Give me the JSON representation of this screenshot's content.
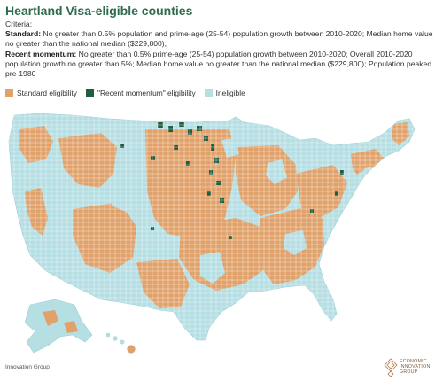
{
  "title": "Heartland Visa-eligible counties",
  "criteria": {
    "heading": "Criteria:",
    "standard_label": "Standard:",
    "standard_text": " No greater than 0.5% population and prime-age (25-54) population growth between 2010-2020; Median home value no greater than the national median ($229,800),",
    "recent_label": "Recent momentum:",
    "recent_text": " No greater than 0.5% prime-age (25-54) population growth between 2010-2020; Overall 2010-2020 population growth no greater than 5%; Median home value no greater than the national median ($229,800); Population peaked pre-1980"
  },
  "legend": [
    {
      "label": "Standard eligibility",
      "color": "#e0a16a"
    },
    {
      "label": "\"Recent momentum\" eligibility",
      "color": "#1f5e3f"
    },
    {
      "label": "Ineligible",
      "color": "#b6dfe3"
    }
  ],
  "colors": {
    "standard": "#e0a16a",
    "recent": "#1f5e3f",
    "ineligible": "#b6dfe3",
    "county_border": "#ffffff",
    "title": "#2f6b4f"
  },
  "source": "Innovation Group",
  "logo": {
    "line1": "ECONOMIC",
    "line2": "INNOVATION",
    "line3": "GROUP",
    "icon": "diamond-lattice-icon"
  }
}
